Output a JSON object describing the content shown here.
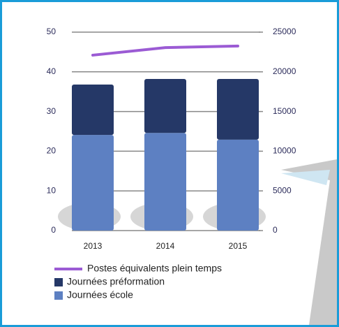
{
  "chart_data": {
    "type": "bar",
    "categories": [
      "2013",
      "2014",
      "2015"
    ],
    "series": [
      {
        "name": "Postes équivalents plein temps",
        "type": "line",
        "axis": "y",
        "color": "#9b5bd4",
        "values": [
          44.2,
          46.1,
          46.5
        ]
      },
      {
        "name": "Journées école",
        "axis": "y2",
        "color": "#5d80c2",
        "values": [
          12050,
          12300,
          11450
        ]
      },
      {
        "name": "Journées préformation",
        "axis": "y2",
        "color": "#253867",
        "values": [
          6350,
          6800,
          7650
        ]
      }
    ],
    "ylim": [
      0,
      50
    ],
    "yticks": [
      0,
      10,
      20,
      30,
      40,
      50
    ],
    "y2lim": [
      0,
      25000
    ],
    "y2ticks": [
      0,
      5000,
      10000,
      15000,
      20000,
      25000
    ],
    "grid": true
  }
}
